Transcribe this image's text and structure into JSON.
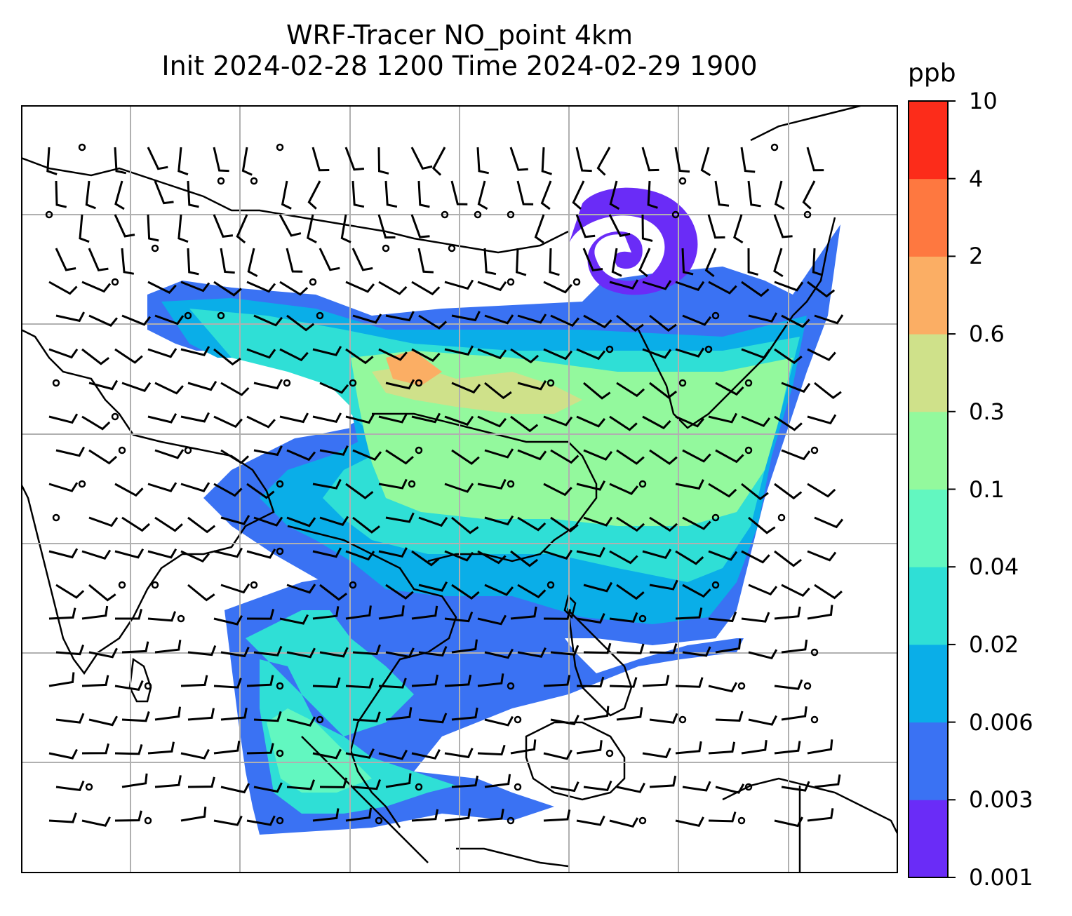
{
  "title_line1": "WRF-Tracer NO_point 4km",
  "title_line2": "Init 2024-02-28 1200 Time 2024-02-29 1900",
  "colorbar": {
    "unit": "ppb",
    "labels": [
      "0.001",
      "0.003",
      "0.006",
      "0.02",
      "0.04",
      "0.1",
      "0.3",
      "0.6",
      "2",
      "4",
      "10"
    ],
    "colors": [
      "#6a2cf7",
      "#3a72f3",
      "#0aaee8",
      "#2fdfd6",
      "#62f7c0",
      "#93f99d",
      "#cfe18a",
      "#fbae64",
      "#fe7840",
      "#fc2c1a"
    ]
  }
}
